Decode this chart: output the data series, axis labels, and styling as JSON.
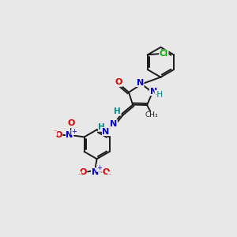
{
  "background_color": "#e8e8e8",
  "bond_color": "#1a1a1a",
  "atom_colors": {
    "N": "#0000cc",
    "O": "#dd0000",
    "Cl": "#00aa00",
    "C": "#1a1a1a",
    "H": "#008888"
  }
}
